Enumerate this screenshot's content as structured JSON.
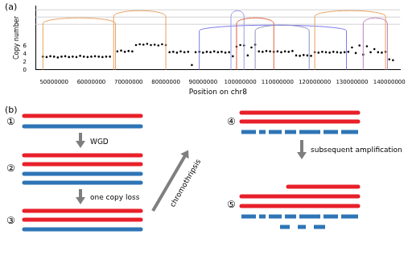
{
  "chart_data": {
    "type": "scatter",
    "annotations": [
      "(a)"
    ],
    "x_label": "Position on chr8",
    "y_label": "Copy number",
    "x": [
      47000000,
      48000000,
      49000000,
      50000000,
      51000000,
      52000000,
      53000000,
      54000000,
      55000000,
      56000000,
      57000000,
      58000000,
      59000000,
      60000000,
      61000000,
      62000000,
      63000000,
      64000000,
      65000000,
      67000000,
      68000000,
      69000000,
      70000000,
      71000000,
      72000000,
      73000000,
      74000000,
      75000000,
      76000000,
      77000000,
      78000000,
      79000000,
      80000000,
      81000000,
      82000000,
      83000000,
      84000000,
      85000000,
      86000000,
      87000000,
      88000000,
      89000000,
      90000000,
      91000000,
      92000000,
      93000000,
      94000000,
      95000000,
      96000000,
      97000000,
      98000000,
      99000000,
      100000000,
      101000000,
      102000000,
      103000000,
      104000000,
      105000000,
      106000000,
      107000000,
      108000000,
      109000000,
      110000000,
      111000000,
      112000000,
      113000000,
      114000000,
      115000000,
      116000000,
      117000000,
      118000000,
      119000000,
      120000000,
      121000000,
      122000000,
      123000000,
      124000000,
      125000000,
      126000000,
      127000000,
      128000000,
      129000000,
      130000000,
      131000000,
      132000000,
      133000000,
      134000000,
      135000000,
      136000000,
      137000000,
      138000000,
      139000000,
      140000000,
      141000000
    ],
    "values": [
      3.3,
      3.2,
      3.4,
      3.3,
      3.1,
      3.3,
      3.4,
      3.2,
      3.3,
      3.2,
      3.5,
      3.3,
      3.2,
      3.3,
      3.4,
      3.3,
      3.2,
      3.3,
      3.3,
      4.6,
      4.8,
      4.5,
      4.7,
      4.6,
      6.2,
      6.4,
      6.3,
      6.5,
      6.2,
      6.3,
      6.1,
      6.4,
      6.2,
      4.4,
      4.5,
      4.3,
      4.6,
      4.4,
      4.5,
      1.2,
      4.4,
      4.5,
      4.3,
      4.5,
      4.4,
      4.6,
      4.4,
      4.5,
      4.3,
      4.4,
      3.4,
      5.8,
      6.2,
      6.1,
      3.6,
      5.6,
      6.3,
      4.6,
      4.5,
      4.7,
      4.6,
      4.5,
      4.6,
      4.4,
      4.6,
      4.5,
      4.7,
      3.6,
      3.5,
      3.7,
      3.6,
      3.5,
      4.4,
      4.3,
      4.5,
      4.4,
      4.3,
      4.5,
      4.4,
      4.3,
      4.4,
      4.5,
      5.6,
      4.2,
      6.1,
      3.8,
      5.9,
      4.4,
      5.2,
      4.4,
      4.3,
      4.5,
      2.6,
      2.4
    ],
    "color": "#000000",
    "marker": "circle",
    "xlim": [
      45000000,
      143000000
    ],
    "xticks": [
      50000000,
      60000000,
      70000000,
      80000000,
      90000000,
      100000000,
      110000000,
      120000000,
      130000000,
      140000000
    ],
    "ylim": [
      0,
      16
    ],
    "yticks": [
      0,
      2,
      4,
      6
    ],
    "grid": false,
    "links": [
      {
        "start": 66000000,
        "end": 80000000,
        "color": "#e8a060"
      },
      {
        "start": 47000000,
        "end": 66500000,
        "color": "#e8a060"
      },
      {
        "start": 89000000,
        "end": 128500000,
        "color": "#7b7bef"
      },
      {
        "start": 97500000,
        "end": 101000000,
        "color": "#9a9ae8"
      },
      {
        "start": 99000000,
        "end": 109000000,
        "color": "#e06040"
      },
      {
        "start": 104000000,
        "end": 118500000,
        "color": "#9090c0"
      },
      {
        "start": 120000000,
        "end": 139000000,
        "color": "#e8a060"
      },
      {
        "start": 133000000,
        "end": 139500000,
        "color": "#c080c0"
      }
    ]
  },
  "diagram": {
    "panel_label": "(b)",
    "steps": [
      "①",
      "②",
      "③",
      "④",
      "⑤"
    ],
    "arrows": [
      "WGD",
      "one copy loss",
      "chromothripsis",
      "subsequent amplification"
    ]
  }
}
